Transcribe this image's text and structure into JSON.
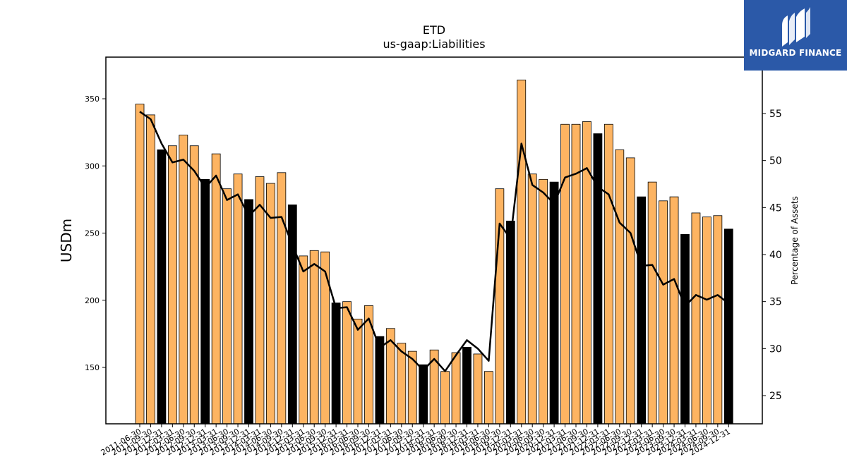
{
  "chart_data": {
    "type": "bar+line",
    "title": "ETD",
    "subtitle": "us-gaap:Liabilities",
    "ylabel": "USDm",
    "y2label": "Percentage of Assets",
    "ylim": [
      108,
      381
    ],
    "y2lim": [
      22,
      61
    ],
    "yticks": [
      150,
      200,
      250,
      300,
      350
    ],
    "y2ticks": [
      25,
      30,
      35,
      40,
      45,
      50,
      55
    ],
    "categories": [
      "2011-06-30",
      "2011-09-30",
      "2011-12-31",
      "2012-03-31",
      "2012-06-30",
      "2012-09-30",
      "2012-12-31",
      "2013-03-31",
      "2013-06-30",
      "2013-09-30",
      "2013-12-31",
      "2014-03-31",
      "2014-06-30",
      "2014-09-30",
      "2014-12-31",
      "2015-03-31",
      "2015-06-30",
      "2015-09-30",
      "2015-12-31",
      "2016-03-31",
      "2016-06-30",
      "2016-09-30",
      "2016-12-31",
      "2017-03-31",
      "2017-06-30",
      "2017-09-30",
      "2017-12-31",
      "2018-03-31",
      "2018-06-30",
      "2018-09-30",
      "2018-12-31",
      "2019-03-31",
      "2019-06-30",
      "2019-09-30",
      "2019-12-31",
      "2020-03-31",
      "2020-06-30",
      "2020-09-30",
      "2020-12-31",
      "2021-03-31",
      "2021-06-30",
      "2021-09-30",
      "2021-12-31",
      "2022-03-31",
      "2022-06-30",
      "2022-09-30",
      "2022-12-31",
      "2023-03-31",
      "2023-06-30",
      "2023-09-30",
      "2023-12-31",
      "2024-03-31",
      "2024-06-30",
      "2024-09-30",
      "2024-12-31"
    ],
    "tick_labels": [
      "2011-06-30",
      "2011-09-30",
      "2011-12-31",
      "2012-03-31",
      "2012-06-30",
      "2012-09-30",
      "2012-12-31",
      "2013-03-31",
      "2013-06-30",
      "2013-09-30",
      "2013-12-31",
      "2014-03-31",
      "2014-06-30",
      "2014-09-30",
      "2014-12-31",
      "2015-03-31",
      "2015-06-30",
      "2015-09-30",
      "2015-12-31",
      "2016-03-31",
      "2016-06-30",
      "2016-09-30",
      "2016-12-31",
      "2017-03-31",
      "2017-06-30",
      "2017-09-30",
      "2017-12-31",
      "2018-03-31",
      "2018-06-30",
      "2018-09-30",
      "2018-12-31",
      "2019-03-31",
      "2019-06-30",
      "2019-09-30",
      "2019-12-31",
      "2020-03-31",
      "2020-06-30",
      "2020-09-30",
      "2020-12-31",
      "2021-03-31",
      "2021-06-30",
      "2021-09-30",
      "2021-12-31",
      "2022-03-31",
      "2022-06-30",
      "2022-09-30",
      "2022-12-31",
      "2023-03-31",
      "2023-06-30",
      "2023-09-30",
      "2023-12-31",
      "2024-03-31",
      "2024-06-30",
      "2024-09-30",
      "2024-12-31"
    ],
    "series": [
      {
        "type": "bar",
        "axis": "left",
        "values": [
          346,
          338,
          312,
          315,
          323,
          315,
          290,
          309,
          283,
          294,
          275,
          292,
          287,
          295,
          271,
          233,
          237,
          236,
          198,
          199,
          186,
          196,
          173,
          179,
          168,
          162,
          152,
          163,
          147,
          161,
          165,
          160,
          147,
          283,
          259,
          364,
          294,
          290,
          288,
          331,
          331,
          333,
          324,
          331,
          312,
          306,
          277,
          288,
          274,
          277,
          249,
          265,
          262,
          263,
          253
        ],
        "colors": [
          "#fdb462",
          "#fdb462",
          "#000000",
          "#fdb462",
          "#fdb462",
          "#fdb462",
          "#000000",
          "#fdb462",
          "#fdb462",
          "#fdb462",
          "#000000",
          "#fdb462",
          "#fdb462",
          "#fdb462",
          "#000000",
          "#fdb462",
          "#fdb462",
          "#fdb462",
          "#000000",
          "#fdb462",
          "#fdb462",
          "#fdb462",
          "#000000",
          "#fdb462",
          "#fdb462",
          "#fdb462",
          "#000000",
          "#fdb462",
          "#fdb462",
          "#fdb462",
          "#000000",
          "#fdb462",
          "#fdb462",
          "#fdb462",
          "#000000",
          "#fdb462",
          "#fdb462",
          "#fdb462",
          "#000000",
          "#fdb462",
          "#fdb462",
          "#fdb462",
          "#000000",
          "#fdb462",
          "#fdb462",
          "#fdb462",
          "#000000",
          "#fdb462",
          "#fdb462",
          "#fdb462",
          "#000000",
          "#fdb462",
          "#fdb462",
          "#fdb462",
          "#000000"
        ]
      },
      {
        "type": "line",
        "axis": "right",
        "color": "#000000",
        "values": [
          55.2,
          54.4,
          51.8,
          49.8,
          50.1,
          48.9,
          47.1,
          48.4,
          45.8,
          46.4,
          44.1,
          45.3,
          43.9,
          44.0,
          41.0,
          38.2,
          39.0,
          38.2,
          34.3,
          34.4,
          32.0,
          33.2,
          30.1,
          30.9,
          29.7,
          28.9,
          27.7,
          28.9,
          27.6,
          29.3,
          30.9,
          30.0,
          28.7,
          43.3,
          41.7,
          51.8,
          47.4,
          46.6,
          45.4,
          48.2,
          48.6,
          49.2,
          47.2,
          46.4,
          43.4,
          42.3,
          38.8,
          38.9,
          36.8,
          37.4,
          34.5,
          35.7,
          35.2,
          35.7,
          34.8
        ]
      }
    ],
    "bar_edge_color": "#000000",
    "grid": false,
    "legend": "none"
  },
  "logo": {
    "text": "MIDGARD FINANCE",
    "background": "#2b59a8"
  }
}
